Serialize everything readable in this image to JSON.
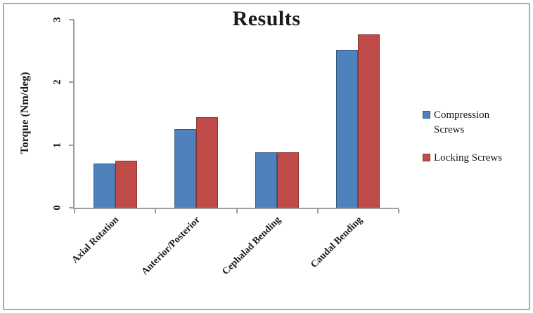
{
  "window": {
    "background_color": "#ffffff",
    "frame_border_color": "#ababab"
  },
  "chart_data": {
    "type": "bar",
    "title": "Results",
    "xlabel": "",
    "ylabel": "Torque (Nm/deg)",
    "categories": [
      "Axial Rotation",
      "Anterior/Posterior",
      "Cephalad Bending",
      "Caudal Bending"
    ],
    "series": [
      {
        "name": "Compression Screws",
        "values": [
          0.7,
          1.25,
          0.88,
          2.52
        ],
        "color": "#4f81bd",
        "border_color": "#36597e"
      },
      {
        "name": "Locking Screws",
        "values": [
          0.75,
          1.44,
          0.88,
          2.77
        ],
        "color": "#bf4c48",
        "border_color": "#8a322f"
      }
    ],
    "ylim": [
      0,
      3
    ],
    "y_ticks": [
      "0",
      "1",
      "2",
      "3"
    ],
    "grid": false,
    "legend_position": "right",
    "axis_color": "#9d9d9d",
    "text_color": "#1a1a1a"
  }
}
